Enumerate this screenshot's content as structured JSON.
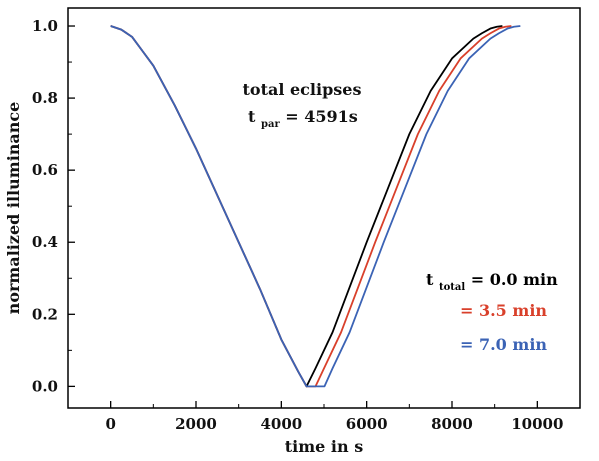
{
  "chart_data": {
    "type": "line",
    "title": "",
    "xlabel": "time in s",
    "ylabel": "normalized illuminance",
    "xlim": [
      -1000,
      11000
    ],
    "ylim": [
      -0.06,
      1.05
    ],
    "xticks": [
      0,
      2000,
      4000,
      6000,
      8000,
      10000
    ],
    "xtick_labels": [
      "0",
      "2000",
      "4000",
      "6000",
      "8000",
      "10000"
    ],
    "yticks": [
      0.0,
      0.2,
      0.4,
      0.6,
      0.8,
      1.0
    ],
    "ytick_labels": [
      "0.0",
      "0.2",
      "0.4",
      "0.6",
      "0.8",
      "1.0"
    ],
    "grid": false,
    "annotation": {
      "line1": "total eclipses",
      "line2_main": "t",
      "line2_sub": "par",
      "line2_rest": " = 4591s"
    },
    "legend": {
      "placement": "lower-right",
      "prefix_main": "t",
      "prefix_sub": "total",
      "entries": [
        {
          "text": "= 0.0 min",
          "color": "#000000"
        },
        {
          "text": "= 3.5 min",
          "color": "#d9402b"
        },
        {
          "text": "= 7.0 min",
          "color": "#3b63b5"
        }
      ]
    },
    "series": [
      {
        "color": "#000000",
        "x": [
          0,
          250,
          500,
          750,
          1000,
          1500,
          2000,
          2500,
          3000,
          3500,
          4000,
          4400,
          4591,
          4800,
          5200,
          6000,
          6500,
          7000,
          7500,
          8000,
          8500,
          8700,
          8900,
          9050,
          9182
        ],
        "y": [
          1.0,
          0.99,
          0.97,
          0.93,
          0.89,
          0.78,
          0.66,
          0.53,
          0.4,
          0.27,
          0.13,
          0.04,
          0.0,
          0.05,
          0.15,
          0.4,
          0.55,
          0.7,
          0.82,
          0.91,
          0.965,
          0.98,
          0.993,
          0.998,
          1.0
        ]
      },
      {
        "color": "#d9402b",
        "x": [
          0,
          250,
          500,
          750,
          1000,
          1500,
          2000,
          2500,
          3000,
          3500,
          4000,
          4400,
          4591,
          4801,
          5000,
          5400,
          6200,
          6700,
          7200,
          7700,
          8200,
          8700,
          8900,
          9100,
          9250,
          9392
        ],
        "y": [
          1.0,
          0.99,
          0.97,
          0.93,
          0.89,
          0.78,
          0.66,
          0.53,
          0.4,
          0.27,
          0.13,
          0.04,
          0.0,
          0.0,
          0.05,
          0.15,
          0.4,
          0.55,
          0.7,
          0.82,
          0.91,
          0.965,
          0.98,
          0.993,
          0.998,
          1.0
        ]
      },
      {
        "color": "#3b63b5",
        "x": [
          0,
          250,
          500,
          750,
          1000,
          1500,
          2000,
          2500,
          3000,
          3500,
          4000,
          4400,
          4591,
          5011,
          5200,
          5600,
          6400,
          6900,
          7400,
          7900,
          8400,
          8900,
          9100,
          9300,
          9450,
          9602
        ],
        "y": [
          1.0,
          0.99,
          0.97,
          0.93,
          0.89,
          0.78,
          0.66,
          0.53,
          0.4,
          0.27,
          0.13,
          0.04,
          0.0,
          0.0,
          0.05,
          0.15,
          0.4,
          0.55,
          0.7,
          0.82,
          0.91,
          0.965,
          0.98,
          0.993,
          0.998,
          1.0
        ]
      }
    ]
  }
}
